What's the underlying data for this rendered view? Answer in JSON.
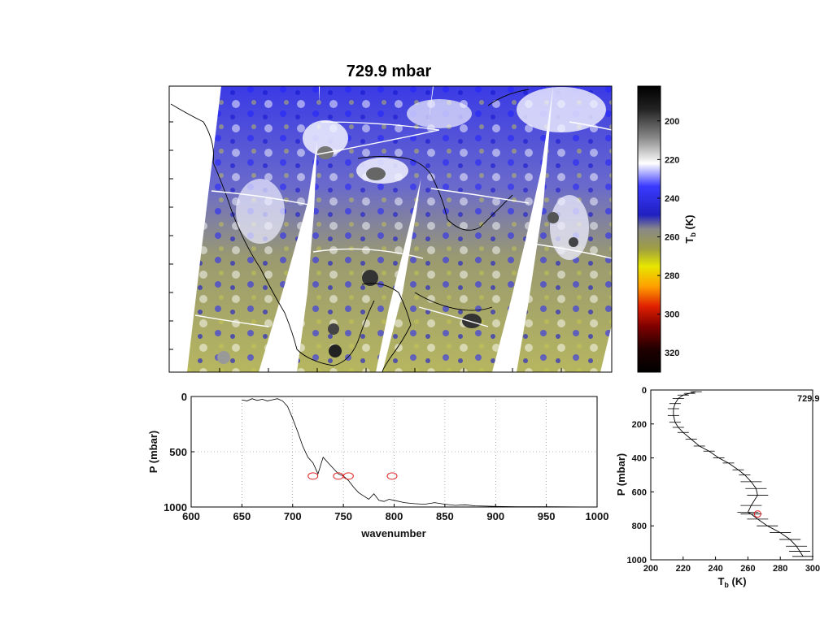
{
  "chart_data": [
    {
      "type": "heatmap",
      "title": "729.9 mbar",
      "colorbar": {
        "label": "T",
        "label_subscript": "b",
        "label_unit": "(K)",
        "ticks": [
          "200",
          "220",
          "240",
          "260",
          "280",
          "300",
          "320"
        ],
        "range": [
          182,
          330
        ],
        "colors": {
          "dark": "#000000",
          "white": "#ffffff",
          "blue": "#1a1ae6",
          "olive": "#c8c850",
          "orange": "#ff8c00",
          "red": "#cc0000"
        }
      },
      "grid": true
    },
    {
      "type": "line",
      "xlabel": "wavenumber",
      "ylabel": "P (mbar)",
      "xlim": [
        600,
        1000
      ],
      "ylim": [
        1000,
        0
      ],
      "x_ticks": [
        "600",
        "650",
        "700",
        "750",
        "800",
        "850",
        "900",
        "950",
        "1000"
      ],
      "y_ticks": [
        "0",
        "500",
        "1000"
      ],
      "grid": true,
      "series": [
        {
          "x": [
            650,
            655,
            660,
            665,
            670,
            675,
            680,
            685,
            690,
            695,
            700,
            705,
            710,
            715,
            720,
            725,
            730,
            735,
            740,
            745,
            750,
            755,
            760,
            765,
            770,
            775,
            780,
            785,
            790,
            795,
            800,
            810,
            820,
            830,
            840,
            850,
            860,
            870,
            880,
            890,
            900,
            920,
            950,
            1000
          ],
          "y": [
            30,
            40,
            20,
            35,
            25,
            40,
            30,
            20,
            40,
            90,
            200,
            320,
            450,
            550,
            600,
            700,
            550,
            600,
            650,
            700,
            720,
            760,
            820,
            870,
            900,
            930,
            880,
            940,
            950,
            930,
            940,
            960,
            970,
            975,
            960,
            975,
            985,
            980,
            990,
            992,
            995,
            997,
            998,
            1000
          ]
        }
      ],
      "highlights": [
        {
          "x": 720,
          "y": 720
        },
        {
          "x": 745,
          "y": 720
        },
        {
          "x": 755,
          "y": 720
        },
        {
          "x": 798,
          "y": 720
        }
      ]
    },
    {
      "type": "line",
      "xlabel": "T",
      "xlabel_subscript": "b",
      "xlabel_unit": "(K)",
      "ylabel": "P (mbar)",
      "annotation": "729.9",
      "xlim": [
        200,
        300
      ],
      "ylim": [
        1000,
        0
      ],
      "x_ticks": [
        "200",
        "220",
        "240",
        "260",
        "280",
        "300"
      ],
      "y_ticks": [
        "0",
        "200",
        "400",
        "600",
        "800",
        "1000"
      ],
      "series": [
        {
          "x": [
            228,
            224,
            220,
            217,
            215,
            214,
            214,
            215,
            217,
            220,
            225,
            230,
            236,
            242,
            248,
            254,
            258,
            262,
            265,
            266,
            262,
            260,
            262,
            266,
            272,
            280,
            286,
            290,
            292,
            294
          ],
          "y": [
            10,
            20,
            30,
            50,
            80,
            110,
            150,
            190,
            220,
            250,
            290,
            330,
            360,
            400,
            430,
            470,
            500,
            540,
            580,
            620,
            680,
            720,
            730,
            760,
            800,
            840,
            880,
            920,
            950,
            980
          ]
        }
      ],
      "highlight": {
        "x": 266,
        "y": 730
      }
    }
  ]
}
